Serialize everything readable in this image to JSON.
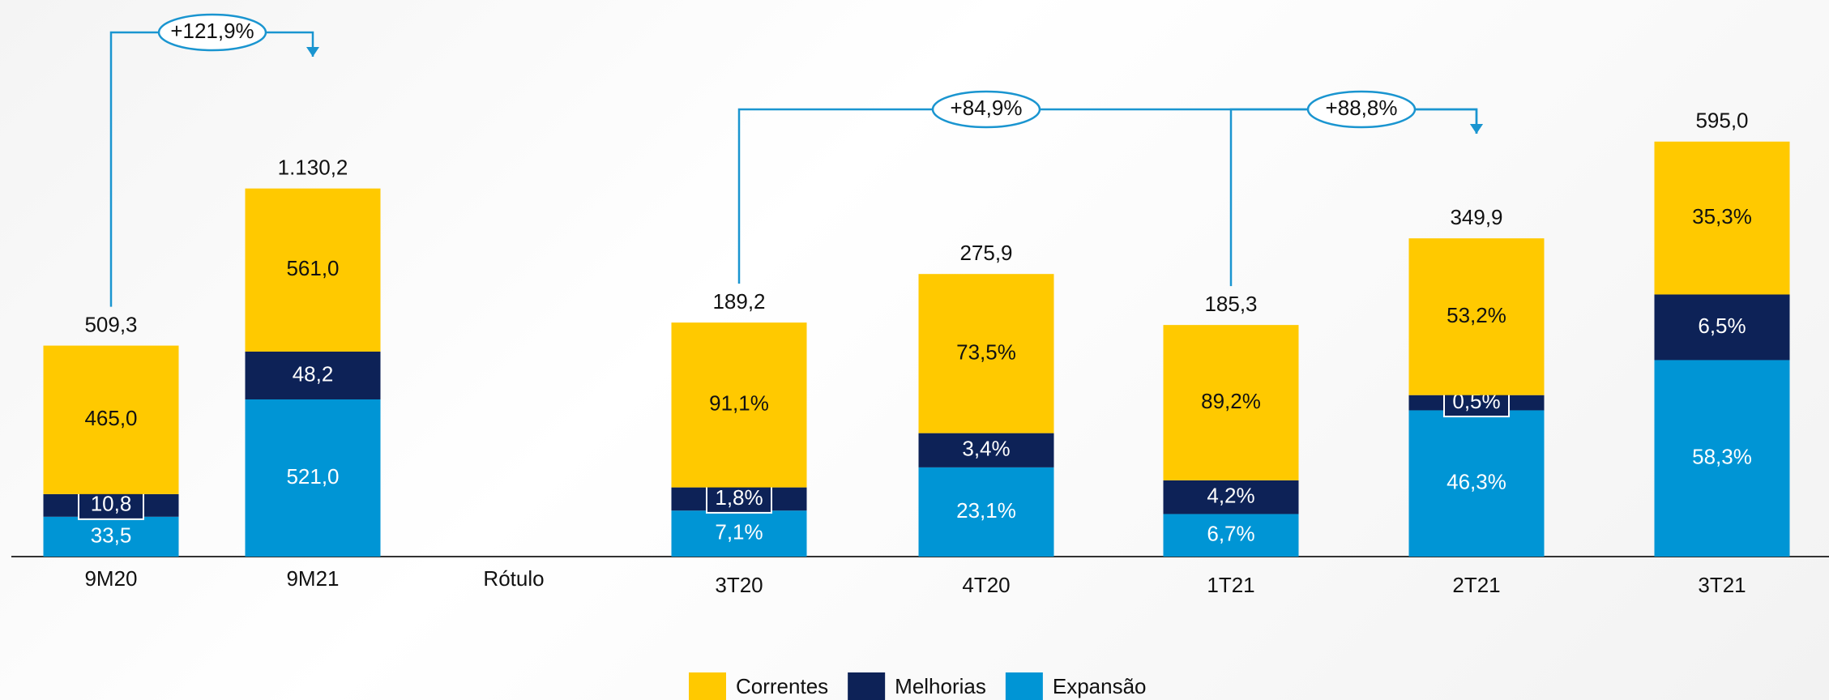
{
  "chart_data": [
    {
      "type": "bar",
      "categories": [
        "9M20",
        "9M21",
        "Rótulo"
      ],
      "series": [
        {
          "color": "#FFC900",
          "values": [
            465.0,
            561.0,
            null
          ],
          "value_labels": [
            "465,0",
            "561,0",
            null
          ]
        },
        {
          "color": "#0D2257",
          "values": [
            10.8,
            48.2,
            null
          ],
          "value_labels": [
            "10,8",
            "48,2",
            null
          ]
        },
        {
          "color": "#0095D5",
          "values": [
            33.5,
            521.0,
            null
          ],
          "value_labels": [
            "33,5",
            "521,0",
            null
          ]
        }
      ],
      "totals": [
        509.3,
        1130.2,
        null
      ],
      "total_labels": [
        "509,3",
        "1.130,2",
        null
      ],
      "annotations": [
        "+121,9%"
      ]
    },
    {
      "type": "bar",
      "categories": [
        "3T20",
        "4T20",
        "1T21",
        "2T21",
        "3T21"
      ],
      "series": [
        {
          "name": "Correntes",
          "color": "#FFC900",
          "values": [
            91.1,
            73.5,
            89.2,
            53.2,
            35.3
          ],
          "value_labels": [
            "91,1%",
            "73,5%",
            "89,2%",
            "53,2%",
            "35,3%"
          ]
        },
        {
          "name": "Melhorias",
          "color": "#0D2257",
          "values": [
            1.8,
            3.4,
            4.2,
            0.5,
            6.5
          ],
          "value_labels": [
            "1,8%",
            "3,4%",
            "4,2%",
            "0,5%",
            "6,5%"
          ]
        },
        {
          "name": "Expansão",
          "color": "#0095D5",
          "values": [
            7.1,
            23.1,
            6.7,
            46.3,
            58.3
          ],
          "value_labels": [
            "7,1%",
            "23,1%",
            "6,7%",
            "46,3%",
            "58,3%"
          ]
        }
      ],
      "totals": [
        189.2,
        275.9,
        185.3,
        349.9,
        595.0
      ],
      "total_labels": [
        "189,2",
        "275,9",
        "185,3",
        "349,9",
        "595,0"
      ],
      "annotations": [
        "+84,9%",
        "+88,8%"
      ],
      "legend": "bottom"
    }
  ]
}
